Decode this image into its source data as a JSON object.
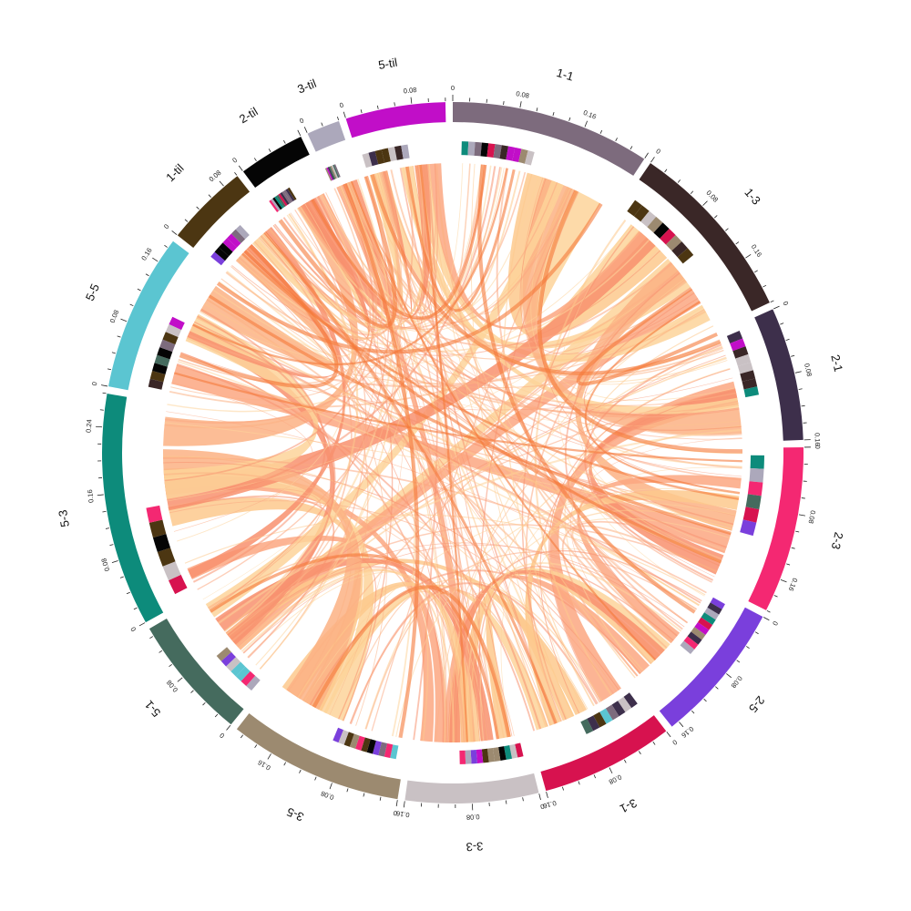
{
  "chart_data": {
    "type": "chord",
    "title": "",
    "start_degree": 90,
    "gap_degree": 1.2,
    "sectors": [
      {
        "name": "1-1",
        "color": "#7d6b7d",
        "max": 0.24,
        "ticks": [
          "0",
          "0.08",
          "0.16"
        ]
      },
      {
        "name": "1-3",
        "color": "#3a2727",
        "max": 0.22,
        "ticks": [
          "0",
          "0.08",
          "0.16"
        ]
      },
      {
        "name": "2-1",
        "color": "#3d2f4b",
        "max": 0.16,
        "ticks": [
          "0",
          "0.08",
          "0.16"
        ]
      },
      {
        "name": "2-3",
        "color": "#f42872",
        "max": 0.2,
        "ticks": [
          "0",
          "0.08",
          "0.16"
        ]
      },
      {
        "name": "2-5",
        "color": "#7a3fdc",
        "max": 0.17,
        "ticks": [
          "0",
          "0.08",
          "0.16"
        ]
      },
      {
        "name": "3-1",
        "color": "#d7124f",
        "max": 0.16,
        "ticks": [
          "0",
          "0.08",
          "0.16"
        ]
      },
      {
        "name": "3-3",
        "color": "#c9c1c4",
        "max": 0.16,
        "ticks": [
          "0",
          "0.08",
          "0.16"
        ]
      },
      {
        "name": "3-5",
        "color": "#9c8a70",
        "max": 0.21,
        "ticks": [
          "0",
          "0.08",
          "0.16"
        ]
      },
      {
        "name": "5-1",
        "color": "#456b5e",
        "max": 0.15,
        "ticks": [
          "0",
          "0.08"
        ]
      },
      {
        "name": "5-3",
        "color": "#0d8b7b",
        "max": 0.28,
        "ticks": [
          "0",
          "0.08",
          "0.16",
          "0.24"
        ]
      },
      {
        "name": "5-5",
        "color": "#5bc5d1",
        "max": 0.19,
        "ticks": [
          "0",
          "0.08",
          "0.16"
        ]
      },
      {
        "name": "1-til",
        "color": "#4c3612",
        "max": 0.1,
        "ticks": [
          "0",
          "0.08"
        ]
      },
      {
        "name": "2-til",
        "color": "#050505",
        "max": 0.08,
        "ticks": [
          "0"
        ]
      },
      {
        "name": "3-til",
        "color": "#aca8bb",
        "max": 0.04,
        "ticks": [
          "0"
        ]
      },
      {
        "name": "5-til",
        "color": "#c10ec8",
        "max": 0.12,
        "ticks": [
          "0",
          "0.08"
        ]
      }
    ]
  }
}
